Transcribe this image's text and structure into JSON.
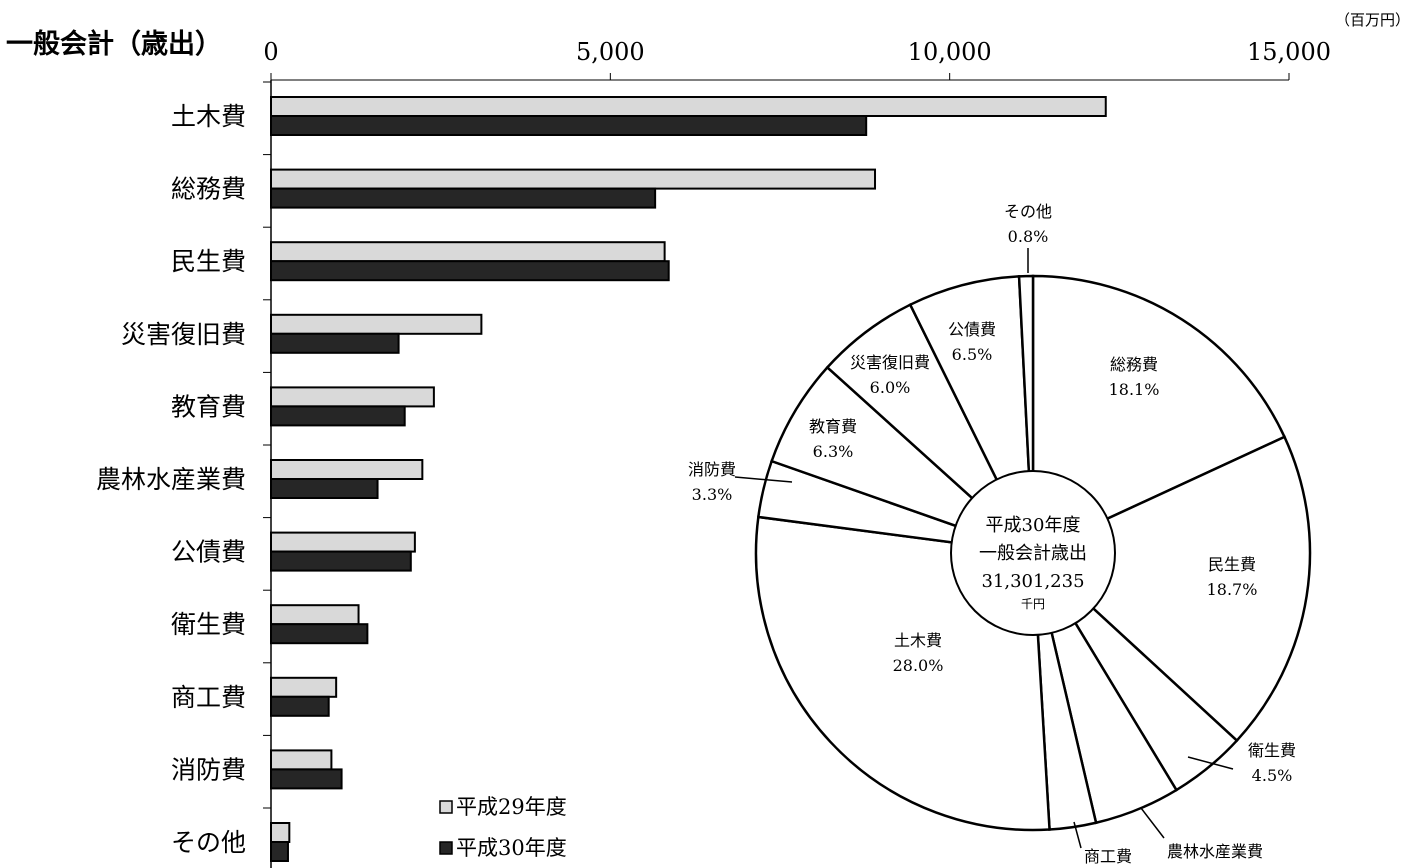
{
  "chart_data": [
    {
      "type": "bar",
      "orientation": "horizontal",
      "title": "一般会計（歳出）",
      "unit": "（百万円）",
      "xlim": [
        0,
        15000
      ],
      "ticks": [
        "0",
        "5,000",
        "10,000",
        "15,000"
      ],
      "tick_values": [
        0,
        5000,
        10000,
        15000
      ],
      "categories": [
        "土木費",
        "総務費",
        "民生費",
        "災害復旧費",
        "教育費",
        "農林水産業費",
        "公債費",
        "衛生費",
        "商工費",
        "消防費",
        "その他"
      ],
      "series": [
        {
          "name": "平成29年度",
          "color": "#d9d9d9",
          "values": [
            12300,
            8900,
            5800,
            3100,
            2400,
            2230,
            2120,
            1290,
            960,
            890,
            270
          ]
        },
        {
          "name": "平成30年度",
          "color": "#262626",
          "values": [
            8770,
            5660,
            5860,
            1880,
            1970,
            1570,
            2060,
            1420,
            850,
            1040,
            250
          ]
        }
      ],
      "legend_position": "bottom-center"
    },
    {
      "type": "pie",
      "style": "donut",
      "center_label": [
        "平成30年度",
        "一般会計歳出",
        "31,301,235",
        "千円"
      ],
      "slices": [
        {
          "label": "総務費",
          "value": 18.1,
          "display": "18.1%"
        },
        {
          "label": "民生費",
          "value": 18.7,
          "display": "18.7%"
        },
        {
          "label": "衛生費",
          "value": 4.5,
          "display": "4.5%"
        },
        {
          "label": "農林水産業費",
          "value": 5.0,
          "display": ""
        },
        {
          "label": "商工費",
          "value": 2.7,
          "display": ""
        },
        {
          "label": "土木費",
          "value": 28.0,
          "display": "28.0%"
        },
        {
          "label": "消防費",
          "value": 3.3,
          "display": "3.3%"
        },
        {
          "label": "教育費",
          "value": 6.3,
          "display": "6.3%"
        },
        {
          "label": "災害復旧費",
          "value": 6.0,
          "display": "6.0%"
        },
        {
          "label": "公債費",
          "value": 6.5,
          "display": "6.5%"
        },
        {
          "label": "その他",
          "value": 0.8,
          "display": "0.8%"
        }
      ]
    }
  ]
}
